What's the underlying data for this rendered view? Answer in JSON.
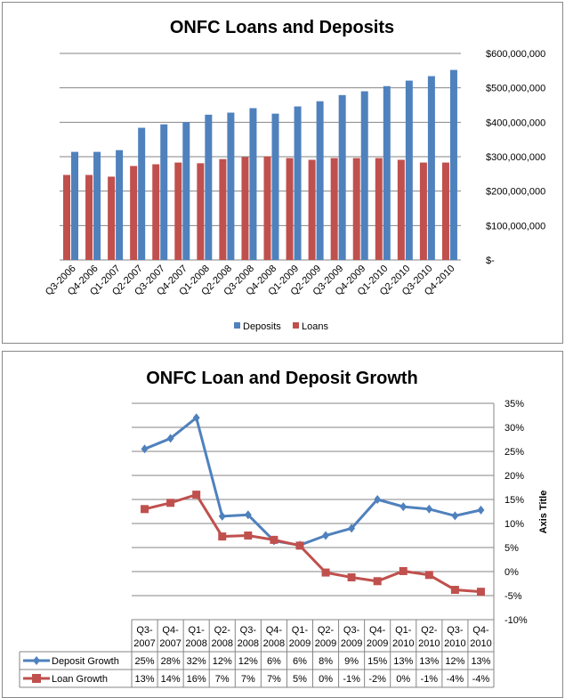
{
  "chart_data": [
    {
      "type": "bar",
      "title": "ONFC Loans and Deposits",
      "categories": [
        "Q3-2006",
        "Q4-2006",
        "Q1-2007",
        "Q2-2007",
        "Q3-2007",
        "Q4-2007",
        "Q1-2008",
        "Q2-2008",
        "Q3-2008",
        "Q4-2008",
        "Q1-2009",
        "Q2-2009",
        "Q3-2009",
        "Q4-2009",
        "Q1-2010",
        "Q2-2010",
        "Q3-2010",
        "Q4-2010"
      ],
      "series": [
        {
          "name": "Deposits",
          "color": "#4f81bd",
          "values": [
            314000000,
            314000000,
            319000000,
            384000000,
            394000000,
            400000000,
            422000000,
            428000000,
            441000000,
            425000000,
            446000000,
            461000000,
            479000000,
            490000000,
            505000000,
            521000000,
            534000000,
            552000000
          ]
        },
        {
          "name": "Loans",
          "color": "#c0504d",
          "values": [
            247000000,
            247000000,
            242000000,
            273000000,
            278000000,
            283000000,
            281000000,
            293000000,
            299000000,
            301000000,
            296000000,
            291000000,
            296000000,
            296000000,
            296000000,
            291000000,
            283000000,
            283000000
          ]
        }
      ],
      "ylim": [
        0,
        600000000
      ],
      "yticks": [
        "$-",
        "$100,000,000",
        "$200,000,000",
        "$300,000,000",
        "$400,000,000",
        "$500,000,000",
        "$600,000,000"
      ],
      "legend": "bottom",
      "grid": true
    },
    {
      "type": "line",
      "title": "ONFC Loan and Deposit Growth",
      "ylabel": "Axis Title",
      "categories": [
        [
          "Q3-",
          "2007"
        ],
        [
          "Q4-",
          "2007"
        ],
        [
          "Q1-",
          "2008"
        ],
        [
          "Q2-",
          "2008"
        ],
        [
          "Q3-",
          "2008"
        ],
        [
          "Q4-",
          "2008"
        ],
        [
          "Q1-",
          "2009"
        ],
        [
          "Q2-",
          "2009"
        ],
        [
          "Q3-",
          "2009"
        ],
        [
          "Q4-",
          "2009"
        ],
        [
          "Q1-",
          "2010"
        ],
        [
          "Q2-",
          "2010"
        ],
        [
          "Q3-",
          "2010"
        ],
        [
          "Q4-",
          "2010"
        ]
      ],
      "series": [
        {
          "name": "Deposit Growth",
          "color": "#4f81bd",
          "values": [
            25.5,
            27.7,
            32,
            11.5,
            11.8,
            6.4,
            5.5,
            7.5,
            9,
            15,
            13.5,
            13,
            11.6,
            12.8
          ],
          "labels": [
            "25%",
            "28%",
            "32%",
            "12%",
            "12%",
            "6%",
            "6%",
            "8%",
            "9%",
            "15%",
            "13%",
            "13%",
            "12%",
            "13%"
          ]
        },
        {
          "name": "Loan Growth",
          "color": "#c0504d",
          "values": [
            13,
            14.3,
            16,
            7.3,
            7.5,
            6.6,
            5.4,
            -0.2,
            -1.2,
            -2,
            0.1,
            -0.7,
            -3.8,
            -4.2
          ],
          "labels": [
            "13%",
            "14%",
            "16%",
            "7%",
            "7%",
            "7%",
            "5%",
            "0%",
            "-1%",
            "-2%",
            "0%",
            "-1%",
            "-4%",
            "-4%"
          ]
        }
      ],
      "ylim": [
        -10,
        35
      ],
      "yticks": [
        "-10%",
        "-5%",
        "0%",
        "5%",
        "10%",
        "15%",
        "20%",
        "25%",
        "30%",
        "35%"
      ],
      "legend": "data-table",
      "grid": true
    }
  ]
}
